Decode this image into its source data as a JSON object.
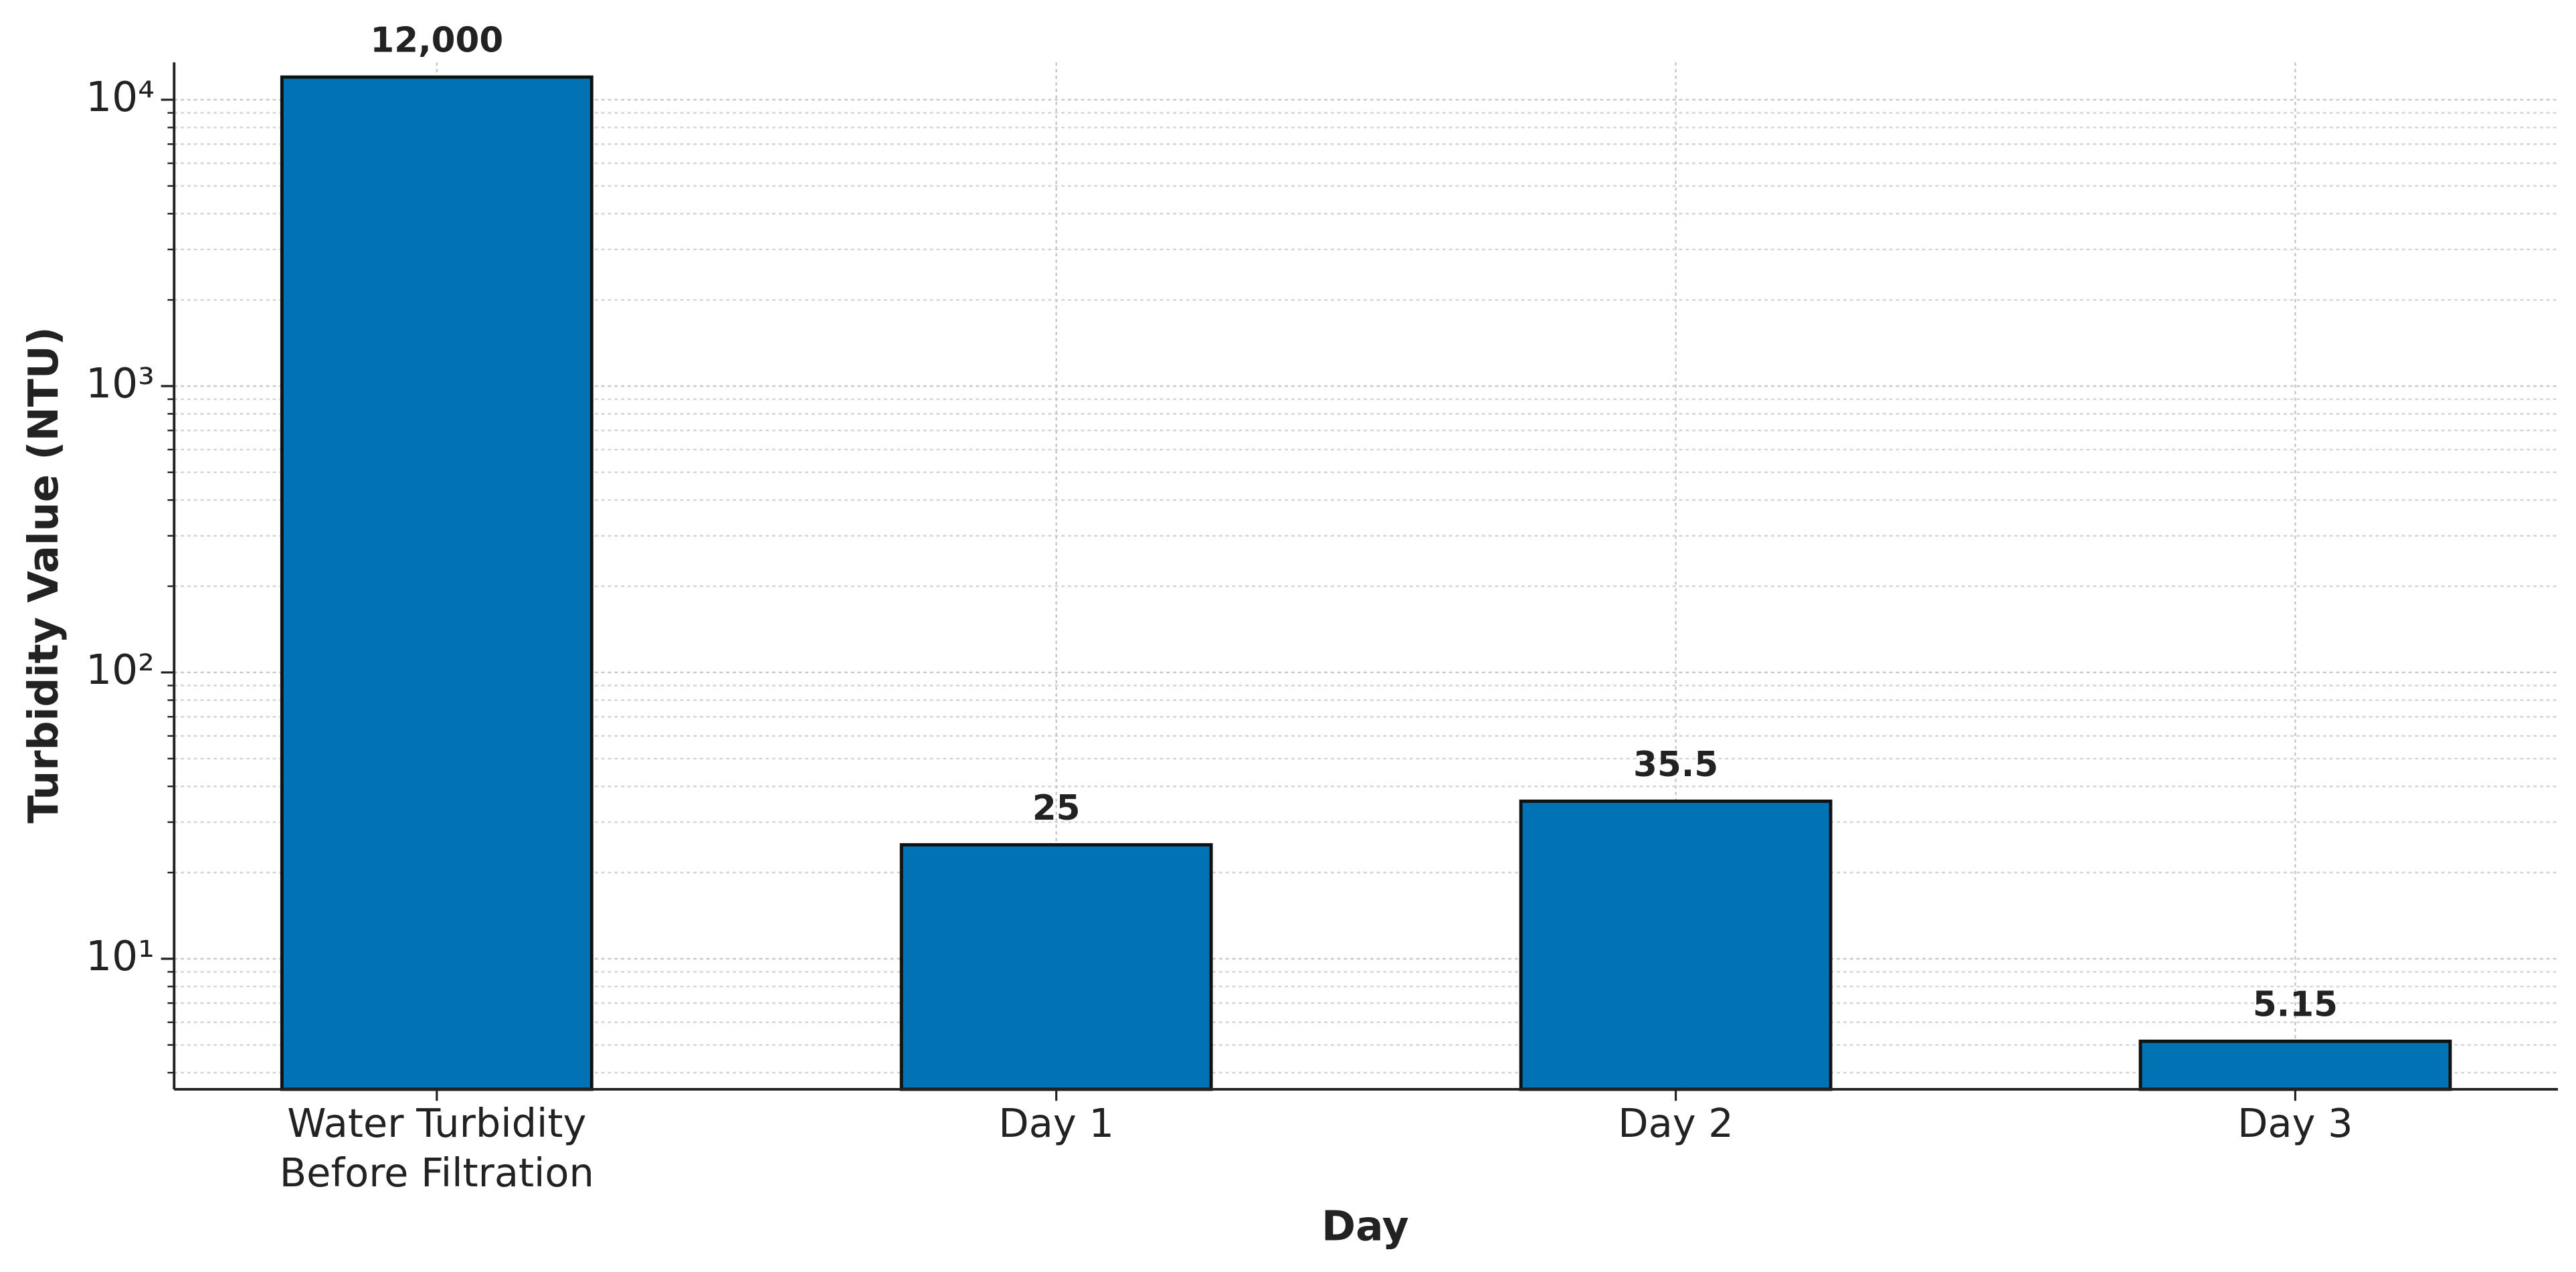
{
  "chart_data": {
    "type": "bar",
    "x_label": "Day",
    "y_label": "Turbidity Value (NTU)",
    "categories": [
      "Water Turbidity\nBefore Filtration",
      "Day 1",
      "Day 2",
      "Day 3"
    ],
    "values": [
      12000,
      25,
      35.5,
      5.15
    ],
    "value_labels": [
      "12,000",
      "25",
      "35.5",
      "5.15"
    ],
    "color": "#0173b4",
    "edge_color": "#111111",
    "y_scale": "log",
    "ylim": [
      3.5,
      13500
    ],
    "yticks": [
      {
        "value": 10,
        "label": "10¹"
      },
      {
        "value": 100,
        "label": "10²"
      },
      {
        "value": 1000,
        "label": "10³"
      },
      {
        "value": 10000,
        "label": "10⁴"
      }
    ],
    "grid": true,
    "minor_grid": true
  }
}
